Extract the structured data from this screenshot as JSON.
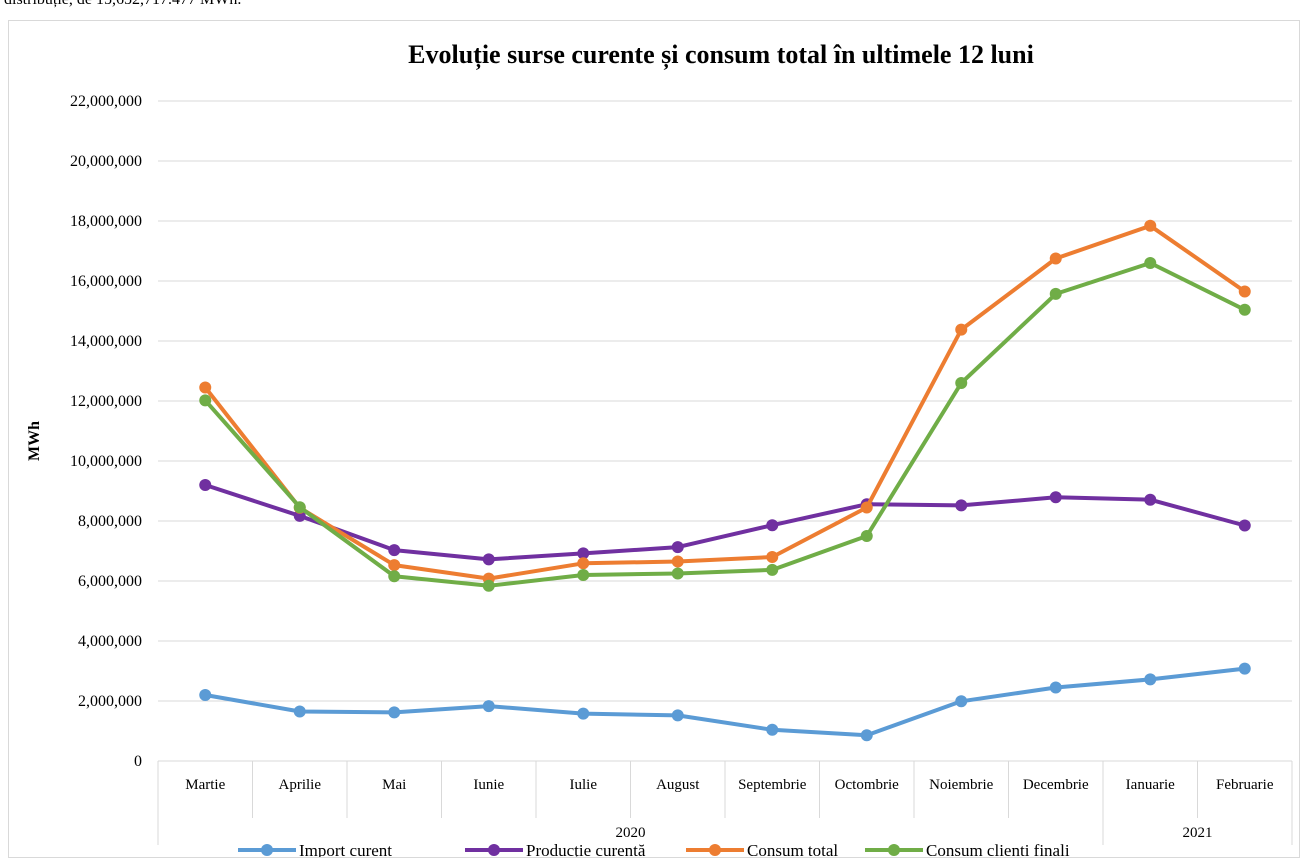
{
  "page": {
    "top_text": "distribuție, de 15,652,717.477 MWh."
  },
  "chart_data": {
    "type": "line",
    "title": "Evoluție surse curente și consum total în ultimele 12 luni",
    "xlabel": "",
    "ylabel": "MWh",
    "ylim": [
      0,
      22000000
    ],
    "y_ticks": [
      0,
      2000000,
      4000000,
      6000000,
      8000000,
      10000000,
      12000000,
      14000000,
      16000000,
      18000000,
      20000000,
      22000000
    ],
    "grid": true,
    "legend_position": "bottom",
    "categories": [
      "Martie",
      "Aprilie",
      "Mai",
      "Iunie",
      "Iulie",
      "August",
      "Septembrie",
      "Octombrie",
      "Noiembrie",
      "Decembrie",
      "Ianuarie",
      "Februarie"
    ],
    "year_groups": [
      {
        "label": "2020",
        "span": 10
      },
      {
        "label": "2021",
        "span": 2
      }
    ],
    "series": [
      {
        "name": "Import curent",
        "color": "#5b9bd5",
        "values": [
          2200000,
          1650000,
          1620000,
          1830000,
          1580000,
          1520000,
          1040000,
          860000,
          1990000,
          2450000,
          2720000,
          3080000
        ]
      },
      {
        "name": "Producție curentă",
        "color": "#7030a0",
        "values": [
          9200000,
          8170000,
          7030000,
          6720000,
          6920000,
          7130000,
          7860000,
          8560000,
          8520000,
          8790000,
          8710000,
          7850000
        ]
      },
      {
        "name": "Consum total",
        "color": "#ed7d31",
        "values": [
          12450000,
          8440000,
          6530000,
          6080000,
          6590000,
          6650000,
          6800000,
          8450000,
          14380000,
          16750000,
          17840000,
          15650000
        ]
      },
      {
        "name": "Consum clienti finali",
        "color": "#70ad47",
        "values": [
          12020000,
          8460000,
          6160000,
          5840000,
          6200000,
          6250000,
          6370000,
          7500000,
          12600000,
          15570000,
          16600000,
          15040000
        ]
      }
    ]
  }
}
